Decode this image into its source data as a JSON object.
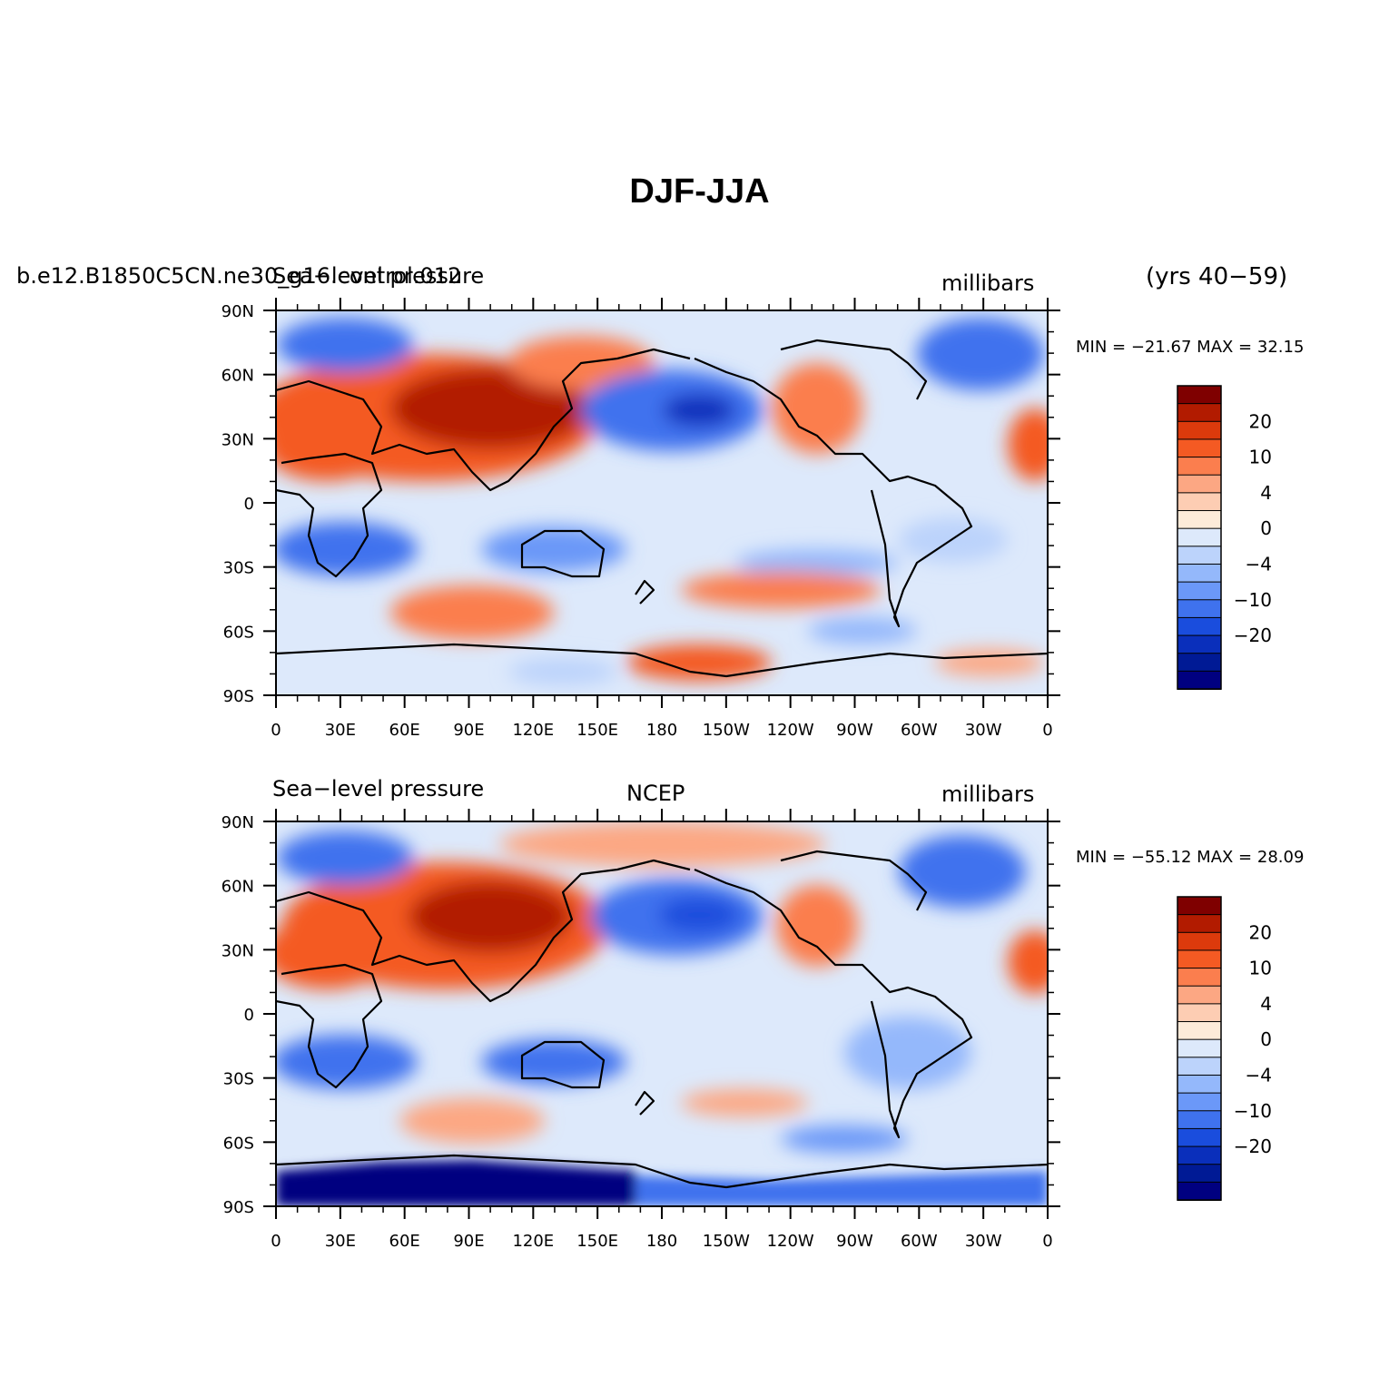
{
  "title": "DJF-JJA",
  "years_label": "(yrs 40−59)",
  "panels": [
    {
      "case_label": "b.e12.B1850C5CN.ne30_g16.control.012",
      "var_label": "Sea−level pressure",
      "center_label": "",
      "units": "millibars",
      "minmax": "MIN = −21.67 MAX =  32.15"
    },
    {
      "case_label": "",
      "var_label": "Sea−level pressure",
      "center_label": "NCEP",
      "units": "millibars",
      "minmax": "MIN = −55.12 MAX =  28.09"
    }
  ],
  "axes": {
    "lat_ticks": [
      "90N",
      "60N",
      "30N",
      "0",
      "30S",
      "60S",
      "90S"
    ],
    "lon_ticks": [
      "0",
      "30E",
      "60E",
      "90E",
      "120E",
      "150E",
      "180",
      "150W",
      "120W",
      "90W",
      "60W",
      "30W",
      "0"
    ]
  },
  "colorbar": {
    "labels": [
      "20",
      "10",
      "4",
      "0",
      "−4",
      "−10",
      "−20"
    ],
    "colors": [
      "#7f0000",
      "#b21b00",
      "#dc3a0c",
      "#f45a23",
      "#fb7e4e",
      "#fca783",
      "#fdcdb3",
      "#fdebd9",
      "#dde9fb",
      "#bcd3fb",
      "#94b8fb",
      "#6b98f8",
      "#3f72ee",
      "#1a4ddd",
      "#0a2fbb",
      "#001a95",
      "#000080"
    ]
  }
}
